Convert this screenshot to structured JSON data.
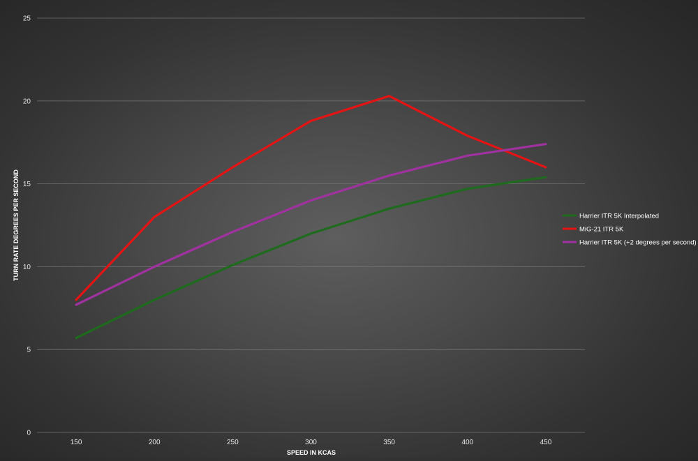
{
  "chart_data": {
    "type": "line",
    "title": "",
    "xlabel": "SPEED IN KCAS",
    "ylabel": "TURN RATE DEGREES PER SECOND",
    "categories": [
      "150",
      "200",
      "250",
      "300",
      "350",
      "400",
      "450"
    ],
    "ylim": [
      0,
      25
    ],
    "yticks": [
      "0",
      "5",
      "10",
      "15",
      "20",
      "25"
    ],
    "grid": true,
    "legend_position": "right",
    "series": [
      {
        "name": "Harrier ITR 5K Interpolated",
        "color": "#1e6b1e",
        "values": [
          5.7,
          8.0,
          10.1,
          12.0,
          13.5,
          14.7,
          15.4
        ]
      },
      {
        "name": "MiG-21 ITR 5K",
        "color": "#e41414",
        "values": [
          8.0,
          13.0,
          16.0,
          18.8,
          20.3,
          17.9,
          16.0
        ]
      },
      {
        "name": "Harrier ITR 5K (+2 degrees per second)",
        "color": "#a032a0",
        "values": [
          7.7,
          10.0,
          12.1,
          14.0,
          15.5,
          16.7,
          17.4
        ]
      }
    ]
  }
}
